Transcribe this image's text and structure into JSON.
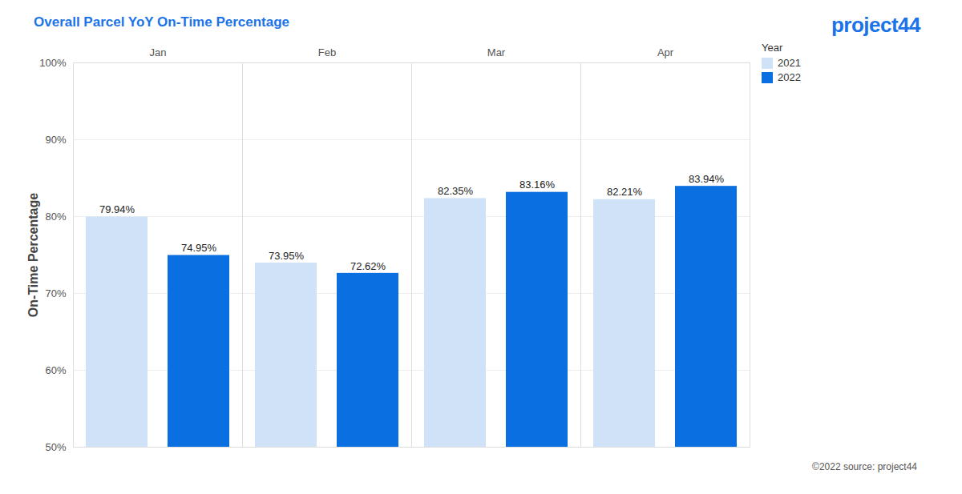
{
  "chart_data": {
    "type": "bar",
    "title": "Overall Parcel YoY On-Time Percentage",
    "logo": "project44",
    "source": "©2022 source: project44",
    "y_label": "On-Time Percentage",
    "legend_title": "Year",
    "legend": "top-right",
    "categories": [
      "Jan",
      "Feb",
      "Mar",
      "Apr"
    ],
    "series": [
      {
        "name": "2021",
        "color": "#cfe2f8",
        "values": [
          79.94,
          73.95,
          82.35,
          82.21
        ],
        "value_labels": [
          "79.94%",
          "73.95%",
          "82.35%",
          "82.21%"
        ]
      },
      {
        "name": "2022",
        "color": "#0a6fe0",
        "values": [
          74.95,
          72.62,
          83.16,
          83.94
        ],
        "value_labels": [
          "74.95%",
          "72.62%",
          "83.16%",
          "83.94%"
        ]
      }
    ],
    "ylim": [
      50,
      100
    ],
    "yticks": [
      {
        "value": 50,
        "label": "50%"
      },
      {
        "value": 60,
        "label": "60%"
      },
      {
        "value": 70,
        "label": "70%"
      },
      {
        "value": 80,
        "label": "80%"
      },
      {
        "value": 90,
        "label": "90%"
      },
      {
        "value": 100,
        "label": "100%"
      }
    ],
    "grid": true,
    "data_labels": true
  }
}
